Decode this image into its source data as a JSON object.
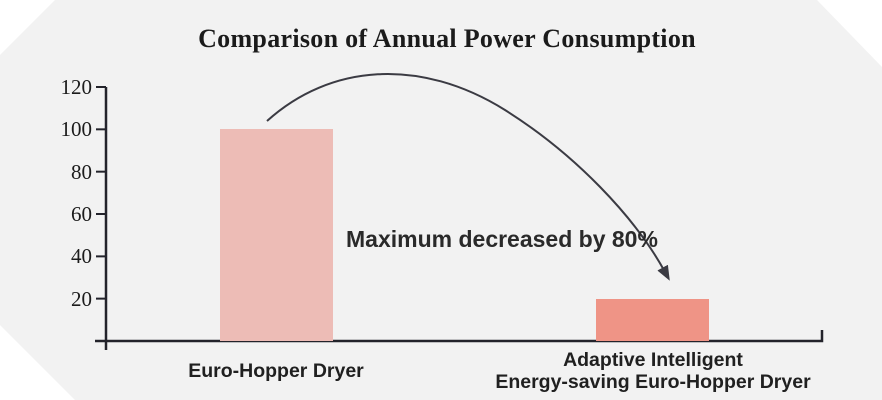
{
  "chart_data": {
    "type": "bar",
    "title": "Comparison of Annual Power Consumption",
    "categories": [
      "Euro-Hopper Dryer",
      "Adaptive Intelligent\nEnergy-saving Euro-Hopper Dryer"
    ],
    "values": [
      100,
      20
    ],
    "ylim": [
      0,
      120
    ],
    "yticks": [
      20,
      40,
      60,
      80,
      100,
      120
    ],
    "xlabel": "",
    "ylabel": "",
    "grid": false,
    "legend_position": "none",
    "annotation": "Maximum decreased by 80%",
    "bar_colors": [
      "#edbcb6",
      "#ef9486"
    ],
    "background_color": "#f2f2f2",
    "axis_color": "#23232b",
    "arrow_color": "#3b3b43",
    "title_color": "#1b1b1b"
  }
}
